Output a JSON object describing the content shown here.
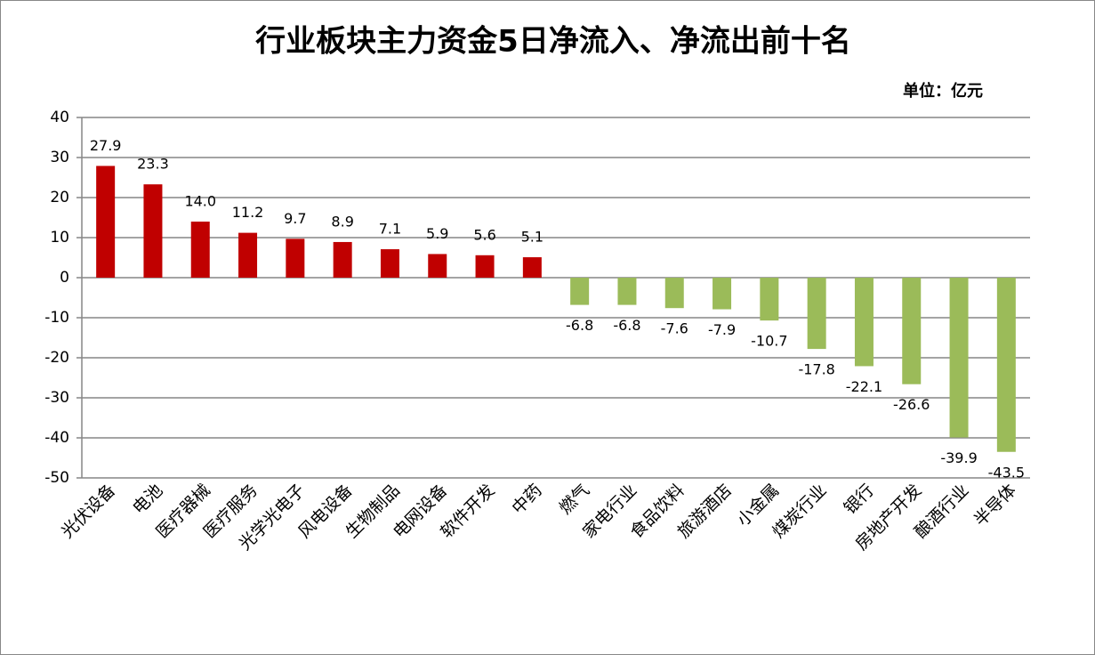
{
  "chart_data": {
    "type": "bar",
    "title": "行业板块主力资金5日净流入、净流出前十名",
    "unit_label": "单位：亿元",
    "categories": [
      "光伏设备",
      "电池",
      "医疗器械",
      "医疗服务",
      "光学光电子",
      "风电设备",
      "生物制品",
      "电网设备",
      "软件开发",
      "中药",
      "燃气",
      "家电行业",
      "食品饮料",
      "旅游酒店",
      "小金属",
      "煤炭行业",
      "银行",
      "房地产开发",
      "酿酒行业",
      "半导体"
    ],
    "values": [
      27.9,
      23.3,
      14.0,
      11.2,
      9.7,
      8.9,
      7.1,
      5.9,
      5.6,
      5.1,
      -6.8,
      -6.8,
      -7.6,
      -7.9,
      -10.7,
      -17.8,
      -22.1,
      -26.6,
      -39.9,
      -43.5
    ],
    "value_labels": [
      "27.9",
      "23.3",
      "14.0",
      "11.2",
      "9.7",
      "8.9",
      "7.1",
      "5.9",
      "5.6",
      "5.1",
      "-6.8",
      "-6.8",
      "-7.6",
      "-7.9",
      "-10.7",
      "-17.8",
      "-22.1",
      "-26.6",
      "-39.9",
      "-43.5"
    ],
    "positive_color": "#c00000",
    "negative_color": "#9bbb59",
    "ylim": [
      -50,
      40
    ],
    "yticks": [
      -50,
      -40,
      -30,
      -20,
      -10,
      0,
      10,
      20,
      30,
      40
    ],
    "grid": true
  }
}
